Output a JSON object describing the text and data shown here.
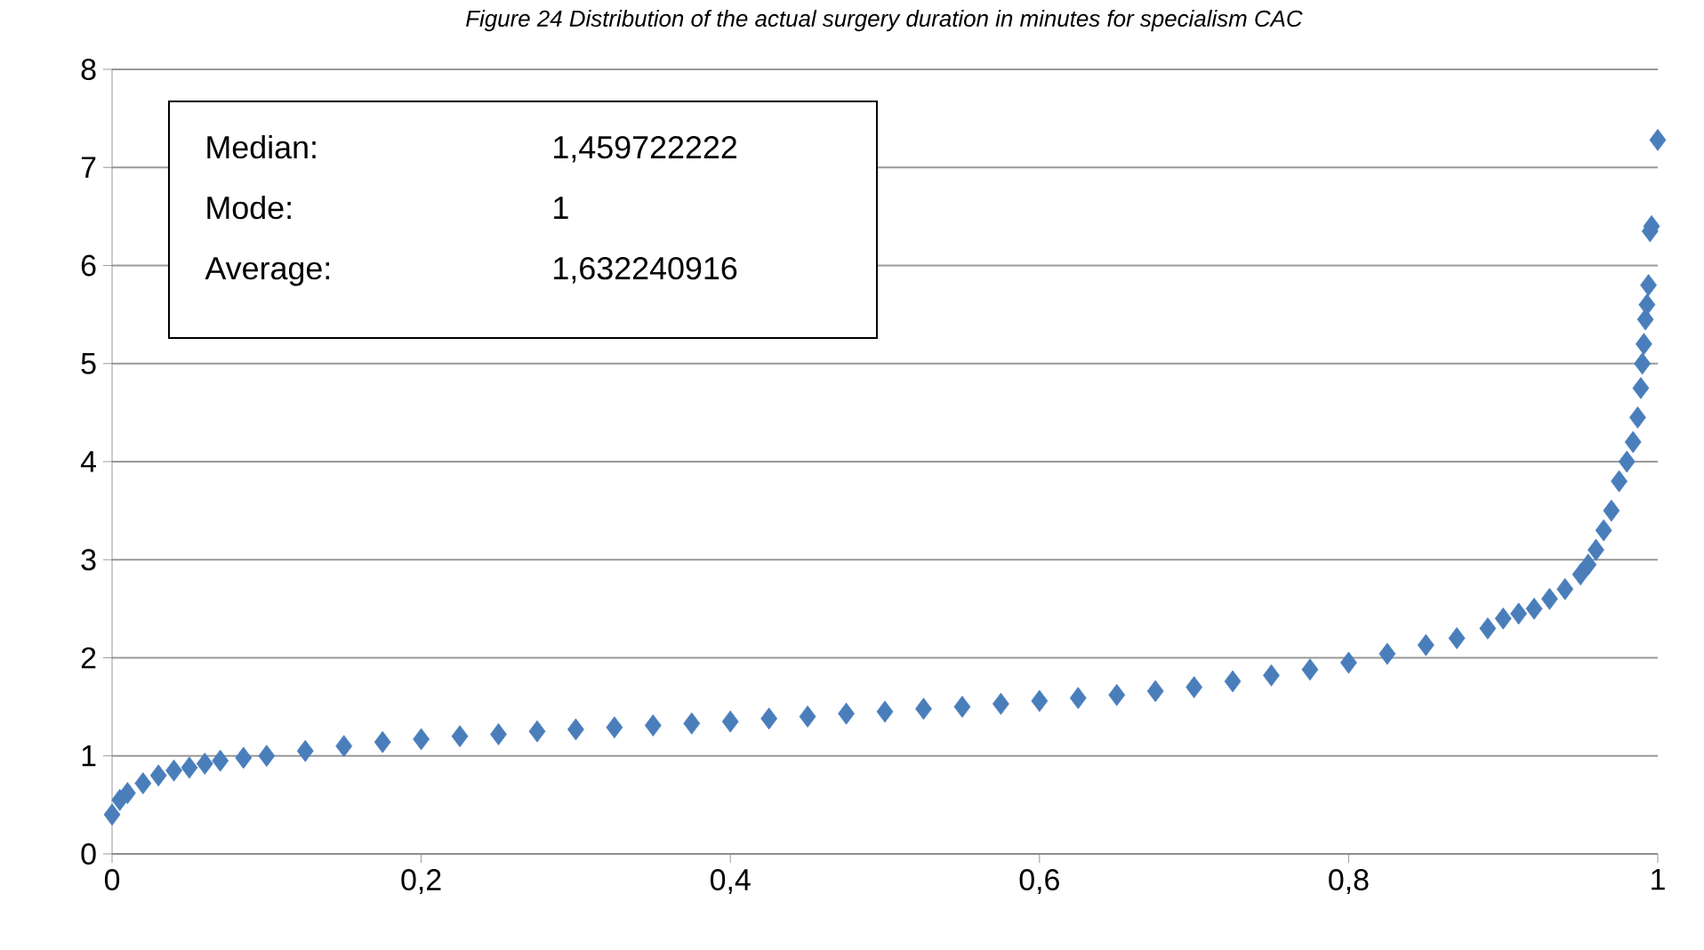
{
  "chart_data": {
    "type": "scatter",
    "title": "Figure 24 Distribution of the actual surgery duration in minutes for specialism CAC",
    "series": [
      {
        "color": "#4a7ebb",
        "x": [
          0,
          0.005,
          0.01,
          0.02,
          0.03,
          0.04,
          0.05,
          0.06,
          0.07,
          0.085,
          0.1,
          0.125,
          0.15,
          0.175,
          0.2,
          0.225,
          0.25,
          0.275,
          0.3,
          0.325,
          0.35,
          0.375,
          0.4,
          0.425,
          0.45,
          0.475,
          0.5,
          0.525,
          0.55,
          0.575,
          0.6,
          0.625,
          0.65,
          0.675,
          0.7,
          0.725,
          0.75,
          0.775,
          0.8,
          0.825,
          0.85,
          0.87,
          0.89,
          0.9,
          0.91,
          0.92,
          0.93,
          0.94,
          0.95,
          0.955,
          0.96,
          0.965,
          0.97,
          0.975,
          0.98,
          0.984,
          0.987,
          0.989,
          0.99,
          0.991,
          0.992,
          0.993,
          0.994,
          0.995,
          0.996,
          1
        ],
        "values": [
          0.4,
          0.55,
          0.62,
          0.72,
          0.8,
          0.85,
          0.88,
          0.92,
          0.95,
          0.98,
          1.0,
          1.05,
          1.1,
          1.14,
          1.17,
          1.2,
          1.22,
          1.25,
          1.27,
          1.29,
          1.31,
          1.33,
          1.35,
          1.38,
          1.4,
          1.43,
          1.45,
          1.48,
          1.5,
          1.53,
          1.56,
          1.59,
          1.62,
          1.66,
          1.7,
          1.76,
          1.82,
          1.88,
          1.95,
          2.04,
          2.13,
          2.2,
          2.3,
          2.4,
          2.45,
          2.5,
          2.6,
          2.7,
          2.85,
          2.95,
          3.1,
          3.3,
          3.5,
          3.8,
          4.0,
          4.2,
          4.45,
          4.75,
          5.0,
          5.2,
          5.45,
          5.6,
          5.8,
          6.35,
          6.4,
          7.28
        ]
      }
    ],
    "marker": "diamond",
    "grid": "y",
    "xlim": [
      0,
      1
    ],
    "xticks": [
      0,
      {
        "value": 0.2,
        "label": "0,2"
      },
      {
        "value": 0.4,
        "label": "0,4"
      },
      {
        "value": 0.6,
        "label": "0,6"
      },
      {
        "value": 0.8,
        "label": "0,8"
      },
      1
    ],
    "ylim": [
      0,
      8
    ],
    "yticks": [
      0,
      1,
      2,
      3,
      4,
      5,
      6,
      7,
      8
    ],
    "annotations": [
      "Median:",
      "1,459722222",
      "Mode:",
      "1",
      "Average:",
      "1,632240916"
    ]
  }
}
